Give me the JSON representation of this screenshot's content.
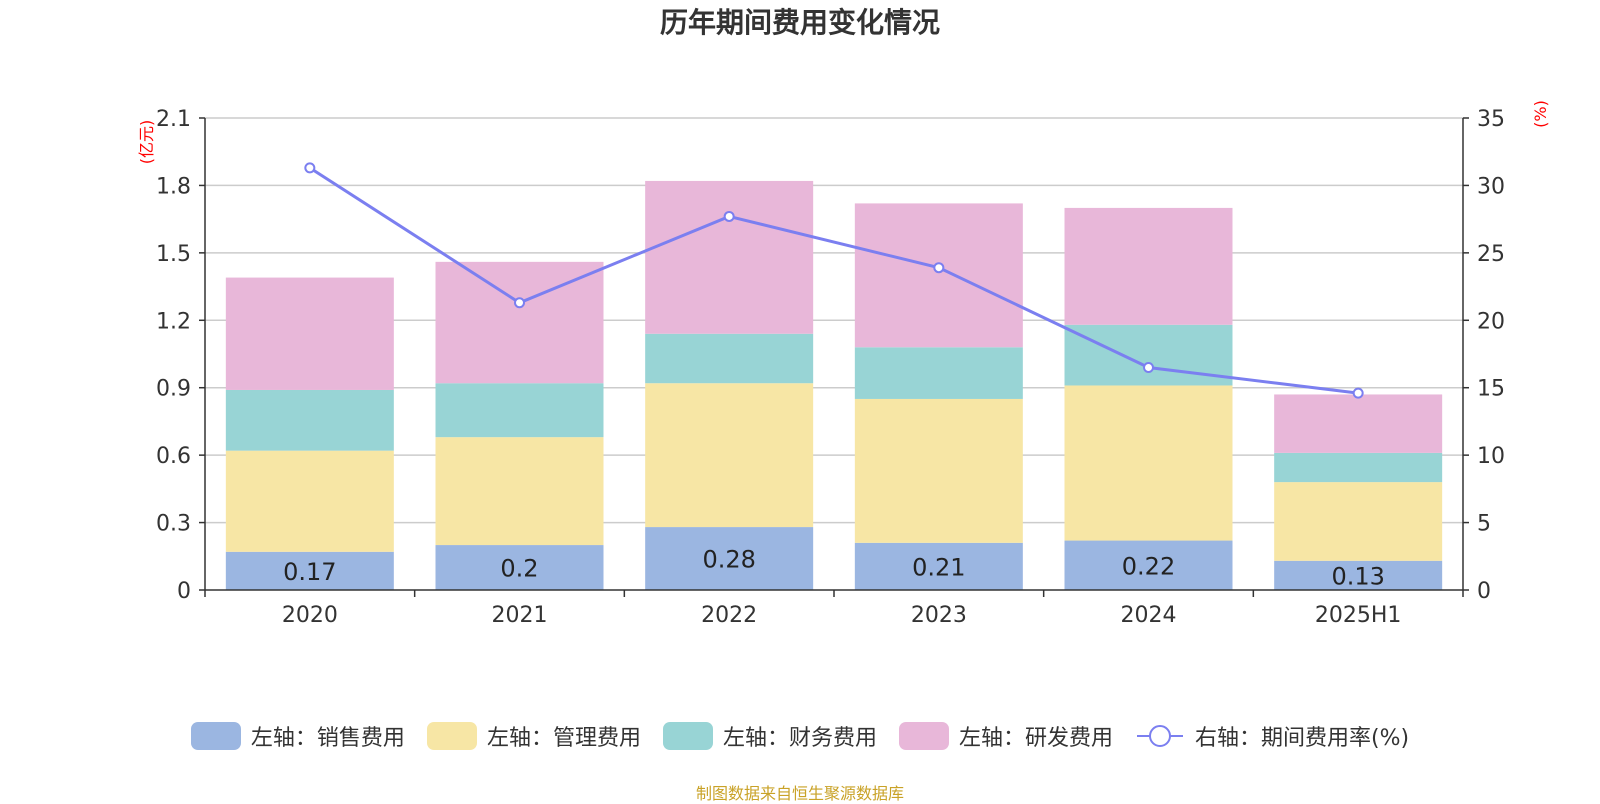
{
  "chart_data": {
    "type": "bar",
    "title": "历年期间费用变化情况",
    "categories": [
      "2020",
      "2021",
      "2022",
      "2023",
      "2024",
      "2025H1"
    ],
    "stacked": true,
    "series": [
      {
        "name": "左轴：销售费用",
        "axis": "left",
        "color": "#9bb6e1",
        "values": [
          0.17,
          0.2,
          0.28,
          0.21,
          0.22,
          0.13
        ],
        "labels": [
          "0.17",
          "0.2",
          "0.28",
          "0.21",
          "0.22",
          "0.13"
        ]
      },
      {
        "name": "左轴：管理费用",
        "axis": "left",
        "color": "#f7e6a5",
        "values": [
          0.45,
          0.48,
          0.64,
          0.64,
          0.69,
          0.35
        ]
      },
      {
        "name": "左轴：财务费用",
        "axis": "left",
        "color": "#98d4d5",
        "values": [
          0.27,
          0.24,
          0.22,
          0.23,
          0.27,
          0.13
        ]
      },
      {
        "name": "左轴：研发费用",
        "axis": "left",
        "color": "#e8b7d9",
        "values": [
          0.5,
          0.54,
          0.68,
          0.64,
          0.52,
          0.26
        ]
      }
    ],
    "line_series": {
      "name": "右轴：期间费用率(%)",
      "axis": "right",
      "color": "#7b7ff0",
      "values": [
        31.3,
        21.3,
        27.7,
        23.9,
        16.5,
        14.6
      ]
    },
    "left_axis": {
      "unit": "(亿元)",
      "ylim": [
        0,
        2.1
      ],
      "ticks": [
        "0",
        "0.3",
        "0.6",
        "0.9",
        "1.2",
        "1.5",
        "1.8",
        "2.1"
      ]
    },
    "right_axis": {
      "unit": "(%)",
      "ylim": [
        0,
        35
      ],
      "ticks": [
        "0",
        "5",
        "10",
        "15",
        "20",
        "25",
        "30",
        "35"
      ]
    },
    "grid": true,
    "legend_position": "bottom"
  },
  "source_note": "制图数据来自恒生聚源数据库",
  "colors": {
    "axis_unit": "#ff0000",
    "source_note": "#c9a227",
    "grid": "#cccccc",
    "text": "#333333"
  }
}
